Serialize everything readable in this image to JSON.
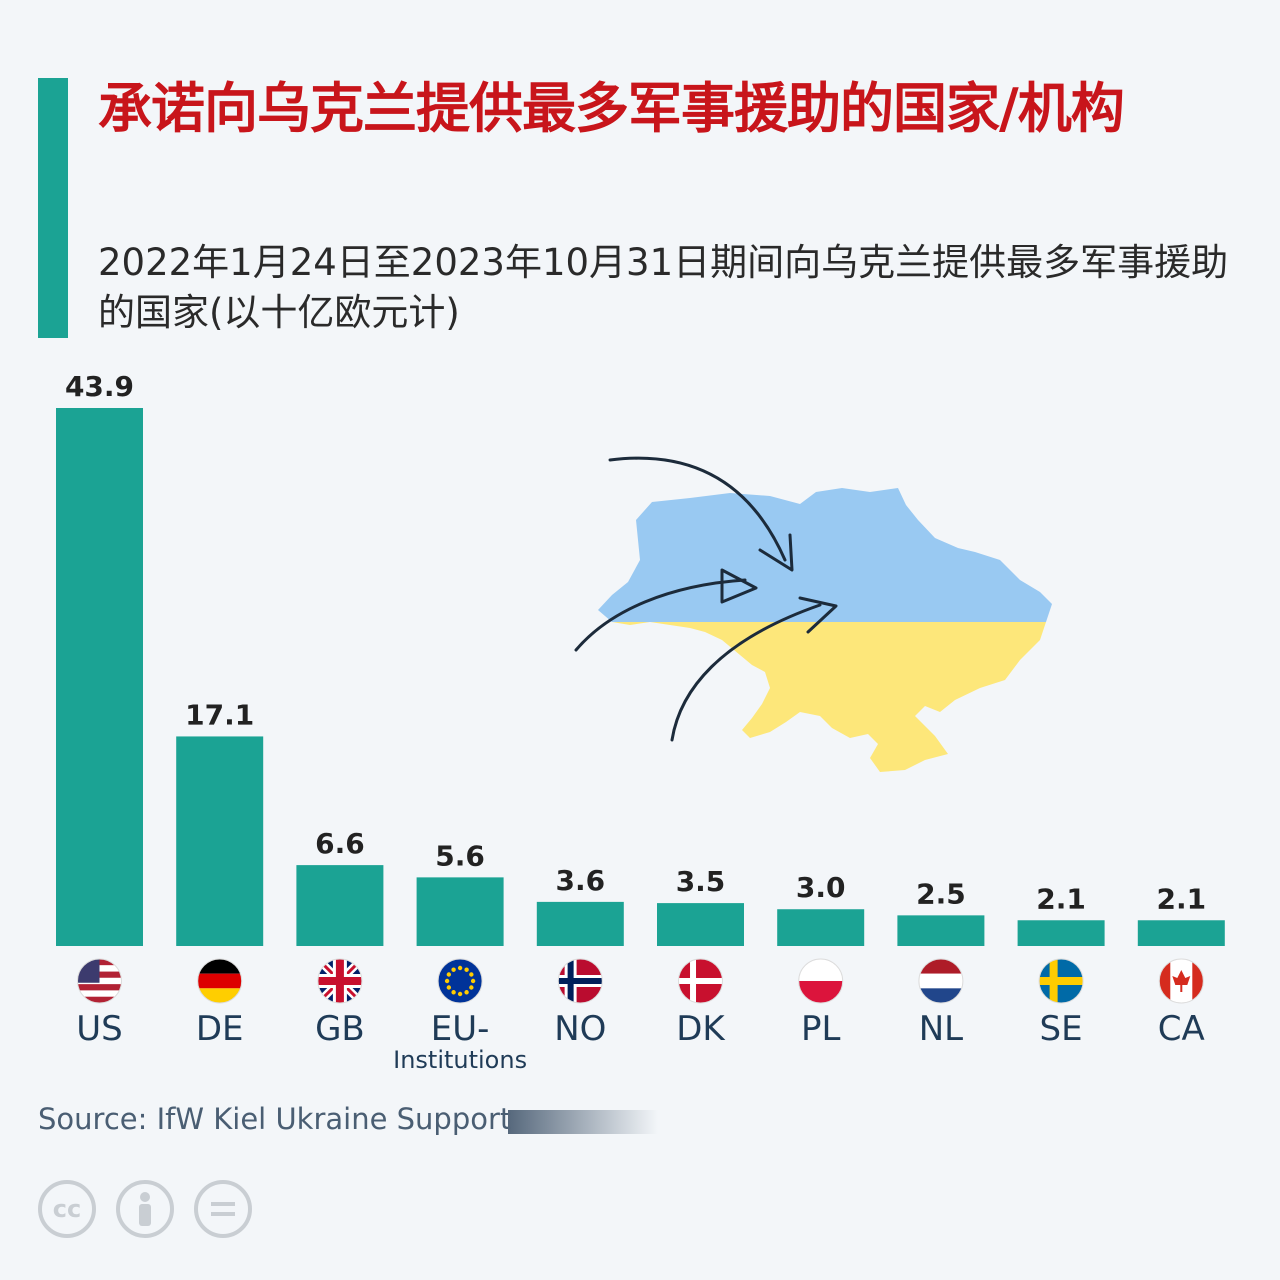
{
  "title": "承诺向乌克兰提供最多军事援助的国家/机构",
  "subtitle": "2022年1月24日至2023年10月31日期间向乌克兰提供最多军事援助的国家(以十亿欧元计)",
  "source": "Source: IfW Kiel Ukraine Support",
  "colors": {
    "accent": "#1ba394",
    "title": "#c8151b",
    "bar": "#1ba394",
    "map_blue": "#99c9f2",
    "map_yellow": "#fde77a"
  },
  "license_icons": [
    "cc-icon",
    "attribution-icon",
    "no-derivatives-icon"
  ],
  "chart_data": {
    "type": "bar",
    "categories": [
      "US",
      "DE",
      "GB",
      "EU-",
      "NO",
      "DK",
      "PL",
      "NL",
      "SE",
      "CA"
    ],
    "category_sublabels": [
      "",
      "",
      "",
      "Institutions",
      "",
      "",
      "",
      "",
      "",
      ""
    ],
    "values": [
      43.9,
      17.1,
      6.6,
      5.6,
      3.6,
      3.5,
      3.0,
      2.5,
      2.1,
      2.1
    ],
    "value_labels": [
      "43.9",
      "17.1",
      "6.6",
      "5.6",
      "3.6",
      "3.5",
      "3.0",
      "2.5",
      "2.1",
      "2.1"
    ],
    "flags": [
      "us-flag-icon",
      "de-flag-icon",
      "gb-flag-icon",
      "eu-flag-icon",
      "no-flag-icon",
      "dk-flag-icon",
      "pl-flag-icon",
      "nl-flag-icon",
      "se-flag-icon",
      "ca-flag-icon"
    ],
    "ylim": [
      0,
      43.9
    ],
    "grid": false,
    "legend": "none"
  }
}
